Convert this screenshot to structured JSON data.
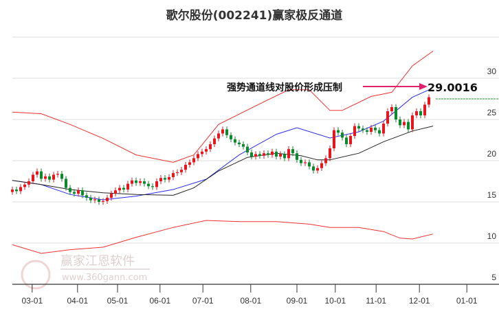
{
  "chart_data": {
    "type": "candlestick",
    "title": "歌尔股份(002241)赢家极反通道",
    "ylim": [
      5,
      35
    ],
    "yticks": [
      5,
      10,
      15,
      20,
      25,
      30
    ],
    "ytick_labels": [
      "5",
      "10",
      "15",
      "20",
      "25",
      "30"
    ],
    "xticks": [
      {
        "label": "03-01",
        "bar": 4.8
      },
      {
        "label": "04-01",
        "bar": 15.8
      },
      {
        "label": "05-01",
        "bar": 25.5
      },
      {
        "label": "06-01",
        "bar": 35.8
      },
      {
        "label": "07-01",
        "bar": 46.2
      },
      {
        "label": "08-01",
        "bar": 57.8
      },
      {
        "label": "09-01",
        "bar": 69
      },
      {
        "label": "10-01",
        "bar": 78.3
      },
      {
        "label": "11-01",
        "bar": 88.2
      },
      {
        "label": "12-01",
        "bar": 98.7
      },
      {
        "label": "01-01",
        "bar": 110.2
      }
    ],
    "candles": {
      "open": [
        16.2,
        16.5,
        16.3,
        16.8,
        17.1,
        17.5,
        18.3,
        18.7,
        17.8,
        18.1,
        17.7,
        18.3,
        18.4,
        17.8,
        16.7,
        16.2,
        16.0,
        16.4,
        15.8,
        15.5,
        15.2,
        15.3,
        15.0,
        15.1,
        15.5,
        16.0,
        16.4,
        16.7,
        16.5,
        17.2,
        17.6,
        17.3,
        17.5,
        17.2,
        16.9,
        16.8,
        17.5,
        17.9,
        17.7,
        18.0,
        18.5,
        18.6,
        18.9,
        19.5,
        19.8,
        20.3,
        20.8,
        21.1,
        21.4,
        22.0,
        22.7,
        23.3,
        23.8,
        23.1,
        22.6,
        22.2,
        22.0,
        21.7,
        21.0,
        20.5,
        20.8,
        20.6,
        20.9,
        20.7,
        21.1,
        20.5,
        20.8,
        20.3,
        21.4,
        20.9,
        20.1,
        19.7,
        19.8,
        19.3,
        18.8,
        19.1,
        19.7,
        20.3,
        21.5,
        23.7,
        23.4,
        22.8,
        22.0,
        23.0,
        24.2,
        23.9,
        23.7,
        23.5,
        24.0,
        23.7,
        23.3,
        24.5,
        26.0,
        26.5,
        25.0,
        24.3,
        24.7,
        23.8,
        25.5,
        26.0,
        25.5,
        26.8
      ],
      "close": [
        16.5,
        16.3,
        16.8,
        17.1,
        17.5,
        18.3,
        18.7,
        17.8,
        18.1,
        17.7,
        18.3,
        18.4,
        17.8,
        16.7,
        16.2,
        16.0,
        16.4,
        15.8,
        15.5,
        15.2,
        15.3,
        15.0,
        15.1,
        15.5,
        16.0,
        16.4,
        16.7,
        16.5,
        17.2,
        17.6,
        17.3,
        17.5,
        17.2,
        16.9,
        16.8,
        17.5,
        17.9,
        17.7,
        18.0,
        18.5,
        18.6,
        18.9,
        19.5,
        19.8,
        20.3,
        20.8,
        21.1,
        21.4,
        22.0,
        22.7,
        23.3,
        23.8,
        23.1,
        22.6,
        22.2,
        22.0,
        21.7,
        21.0,
        20.5,
        20.8,
        20.6,
        20.9,
        20.7,
        21.1,
        20.5,
        20.8,
        20.3,
        21.4,
        20.9,
        20.1,
        19.7,
        19.8,
        19.3,
        18.8,
        19.1,
        19.7,
        20.3,
        21.5,
        23.7,
        23.4,
        22.8,
        22.0,
        23.0,
        24.2,
        23.9,
        23.7,
        23.5,
        24.0,
        23.7,
        23.3,
        24.5,
        26.0,
        26.5,
        25.0,
        24.3,
        24.7,
        23.8,
        25.5,
        26.0,
        25.5,
        26.8,
        27.7
      ]
    },
    "series": [
      {
        "name": "upper-channel",
        "color": "#f03030",
        "points": [
          [
            0,
            25.9
          ],
          [
            7,
            25.7
          ],
          [
            14,
            24.4
          ],
          [
            22,
            22.7
          ],
          [
            30,
            20.7
          ],
          [
            39,
            19.8
          ],
          [
            44,
            20.7
          ],
          [
            50,
            24.4
          ],
          [
            60,
            26.9
          ],
          [
            67,
            28.6
          ],
          [
            72,
            28.6
          ],
          [
            77,
            26.1
          ],
          [
            80,
            26.1
          ],
          [
            87,
            27.8
          ],
          [
            92,
            28.3
          ],
          [
            97,
            31.5
          ],
          [
            102,
            33.3
          ]
        ]
      },
      {
        "name": "middle-channel",
        "color": "#2b2bf0",
        "points": [
          [
            0,
            17.6
          ],
          [
            7,
            17.1
          ],
          [
            14,
            15.9
          ],
          [
            22,
            15.25
          ],
          [
            30,
            15.7
          ],
          [
            39,
            16.5
          ],
          [
            47,
            17.75
          ],
          [
            55,
            20.7
          ],
          [
            64,
            23.2
          ],
          [
            69,
            24.0
          ],
          [
            77,
            22.75
          ],
          [
            84,
            23.5
          ],
          [
            90,
            24.8
          ],
          [
            97,
            27.7
          ],
          [
            101,
            28.6
          ]
        ]
      },
      {
        "name": "lower-channel",
        "color": "#f03030",
        "points": [
          [
            0,
            9.8
          ],
          [
            7,
            8.75
          ],
          [
            14,
            9.2
          ],
          [
            22,
            9.5
          ],
          [
            30,
            10.7
          ],
          [
            39,
            11.9
          ],
          [
            47,
            12.75
          ],
          [
            55,
            12.6
          ],
          [
            64,
            12.6
          ],
          [
            72,
            12.3
          ],
          [
            77,
            11.9
          ],
          [
            84,
            11.9
          ],
          [
            90,
            11.4
          ],
          [
            94,
            10.6
          ],
          [
            97,
            10.5
          ],
          [
            102,
            11.1
          ]
        ]
      },
      {
        "name": "moving-average",
        "color": "#222222",
        "points": [
          [
            0,
            17.6
          ],
          [
            7,
            17.1
          ],
          [
            14,
            16.5
          ],
          [
            22,
            16.1
          ],
          [
            30,
            15.9
          ],
          [
            39,
            15.8
          ],
          [
            44,
            16.7
          ],
          [
            50,
            18.75
          ],
          [
            57,
            20.4
          ],
          [
            64,
            20.9
          ],
          [
            70,
            20.6
          ],
          [
            74,
            20.1
          ],
          [
            77,
            20.1
          ],
          [
            84,
            20.9
          ],
          [
            90,
            22.3
          ],
          [
            97,
            23.6
          ],
          [
            102,
            24.2
          ]
        ]
      }
    ],
    "last_price_line": 27.5,
    "annotation": {
      "text": "强势通道线对股价形成压制",
      "value": "29.0016"
    },
    "colors": {
      "up": "#e8161c",
      "down": "#0a8a2a",
      "grid": "#dddddd",
      "arrow": "#e0206a",
      "price_line": "#1a9a1a"
    }
  },
  "watermark": {
    "brand": "赢家江恩软件",
    "url": "www.360gann.com",
    "seal": "江赢恩家"
  }
}
